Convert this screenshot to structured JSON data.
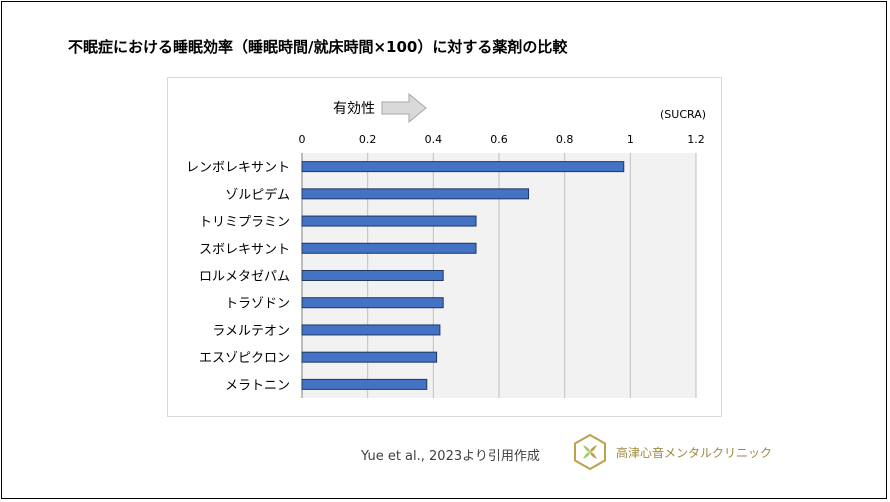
{
  "slide": {
    "title": "不眠症における睡眠効率（睡眠時間/就床時間×100）に対する薬剤の比較",
    "efficacy_label": "有効性",
    "unit_label": "(SUCRA)",
    "citation": "Yue et al., 2023より引用作成",
    "clinic_name": "高津心音メンタルクリニック"
  },
  "colors": {
    "bar_fill": "#4472c4",
    "bar_stroke": "#1f3864",
    "plot_bg": "#f2f2f2",
    "grid": "#bfbfbf",
    "arrow_fill": "#d9d9d9",
    "logo_gold": "#b9a24a",
    "logo_green": "#9ccc65"
  },
  "chart_data": {
    "type": "bar",
    "orientation": "horizontal",
    "categories": [
      "レンボレキサント",
      "ゾルピデム",
      "トリミプラミン",
      "スボレキサント",
      "ロルメタゼパム",
      "トラゾドン",
      "ラメルテオン",
      "エスゾピクロン",
      "メラトニン"
    ],
    "values": [
      0.98,
      0.69,
      0.53,
      0.53,
      0.43,
      0.43,
      0.42,
      0.41,
      0.38
    ],
    "x_ticks": [
      "0",
      "0.2",
      "0.4",
      "0.6",
      "0.8",
      "1",
      "1.2"
    ],
    "xlim": [
      0,
      1.2
    ],
    "xlabel": "(SUCRA)",
    "grid": true,
    "axis_position": "top"
  }
}
